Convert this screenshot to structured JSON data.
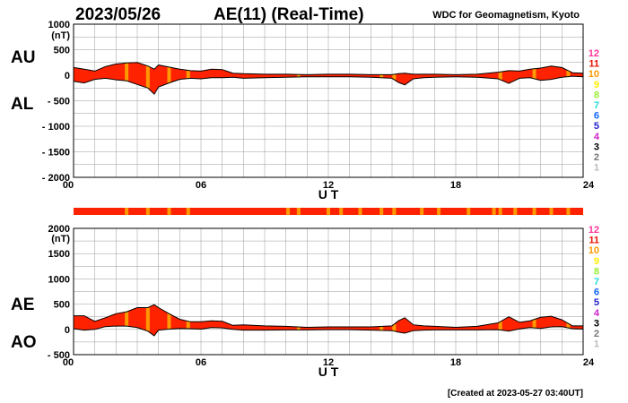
{
  "header": {
    "date": "2023/05/26",
    "title": "AE(11) (Real-Time)",
    "institution": "WDC for Geomagnetism, Kyoto"
  },
  "footer": {
    "created": "[Created at 2023-05-27 03:40UT]"
  },
  "legend": {
    "entries": [
      {
        "label": "12",
        "color": "#ff3399"
      },
      {
        "label": "11",
        "color": "#ee1100"
      },
      {
        "label": "10",
        "color": "#ff9900"
      },
      {
        "label": "9",
        "color": "#ffee00"
      },
      {
        "label": "8",
        "color": "#99ee33"
      },
      {
        "label": "7",
        "color": "#22dddd"
      },
      {
        "label": "6",
        "color": "#1166ff"
      },
      {
        "label": "5",
        "color": "#2222cc"
      },
      {
        "label": "4",
        "color": "#cc22cc"
      },
      {
        "label": "3",
        "color": "#000000"
      },
      {
        "label": "2",
        "color": "#777777"
      },
      {
        "label": "1",
        "color": "#bbbbbb"
      }
    ]
  },
  "colors": {
    "fill_main": "#ff2200",
    "fill_alt": "#ff9900",
    "grid": "#999999"
  },
  "chart_data": [
    {
      "type": "area",
      "panel": "AU/AL",
      "side_label_top": "AU",
      "side_label_bottom": "AL",
      "unit": "(nT)",
      "xlabel": "U T",
      "xlim": [
        0,
        24
      ],
      "ylim": [
        -2000,
        1000
      ],
      "xticks": [
        "00",
        "06",
        "12",
        "18",
        "24"
      ],
      "yticks": [
        "1000",
        "500",
        "0",
        "- 500",
        "- 1000",
        "- 1500",
        "- 2000"
      ],
      "ytick_values": [
        1000,
        500,
        0,
        -500,
        -1000,
        -1500,
        -2000
      ],
      "grid": true,
      "x": [
        0,
        0.5,
        1,
        1.5,
        2,
        2.5,
        3,
        3.5,
        3.8,
        4,
        4.5,
        5,
        5.5,
        6,
        6.5,
        7,
        7.5,
        8,
        9,
        10,
        11,
        12,
        13,
        14,
        15,
        15.3,
        15.6,
        16,
        16.5,
        17,
        18,
        19,
        20,
        20.5,
        21,
        21.5,
        22,
        22.5,
        23,
        23.5,
        24
      ],
      "series": [
        {
          "name": "AU",
          "values": [
            150,
            120,
            80,
            170,
            220,
            240,
            250,
            180,
            120,
            200,
            160,
            120,
            90,
            80,
            120,
            110,
            40,
            30,
            20,
            20,
            10,
            20,
            20,
            10,
            10,
            30,
            40,
            20,
            20,
            20,
            10,
            20,
            60,
            90,
            80,
            120,
            140,
            180,
            150,
            50,
            40
          ]
        },
        {
          "name": "AL",
          "values": [
            -120,
            -150,
            -80,
            -60,
            -90,
            -110,
            -180,
            -250,
            -370,
            -230,
            -150,
            -80,
            -60,
            -70,
            -50,
            -50,
            -40,
            -60,
            -50,
            -40,
            -30,
            -30,
            -30,
            -40,
            -60,
            -140,
            -190,
            -70,
            -50,
            -40,
            -30,
            -40,
            -70,
            -160,
            -60,
            -50,
            -100,
            -80,
            -40,
            -20,
            -30
          ]
        }
      ]
    },
    {
      "type": "area",
      "panel": "AE/AO",
      "side_label_top": "AE",
      "side_label_bottom": "AO",
      "unit": "(nT)",
      "xlabel": "U T",
      "xlim": [
        0,
        24
      ],
      "ylim": [
        -500,
        2000
      ],
      "xticks": [
        "00",
        "06",
        "12",
        "18",
        "24"
      ],
      "yticks": [
        "2000",
        "1500",
        "1000",
        "500",
        "0",
        "- 500"
      ],
      "ytick_values": [
        2000,
        1500,
        1000,
        500,
        0,
        -500
      ],
      "grid": true,
      "x": [
        0,
        0.5,
        1,
        1.5,
        2,
        2.5,
        3,
        3.5,
        3.8,
        4,
        4.5,
        5,
        5.5,
        6,
        6.5,
        7,
        7.5,
        8,
        9,
        10,
        11,
        12,
        13,
        14,
        15,
        15.3,
        15.6,
        16,
        16.5,
        17,
        18,
        19,
        20,
        20.5,
        21,
        21.5,
        22,
        22.5,
        23,
        23.5,
        24
      ],
      "series": [
        {
          "name": "AE",
          "values": [
            270,
            270,
            160,
            230,
            310,
            350,
            430,
            430,
            490,
            430,
            310,
            200,
            150,
            150,
            170,
            160,
            80,
            90,
            70,
            60,
            40,
            50,
            50,
            50,
            70,
            170,
            230,
            90,
            70,
            60,
            40,
            60,
            130,
            250,
            140,
            170,
            240,
            260,
            190,
            70,
            70
          ]
        },
        {
          "name": "AO",
          "values": [
            15,
            -15,
            0,
            55,
            65,
            65,
            35,
            -35,
            -125,
            -15,
            5,
            20,
            15,
            5,
            35,
            30,
            0,
            -15,
            -15,
            -10,
            -10,
            -5,
            -5,
            -15,
            -25,
            -55,
            -75,
            -25,
            -15,
            -10,
            -10,
            -10,
            -5,
            -35,
            10,
            35,
            20,
            50,
            55,
            15,
            5
          ]
        }
      ]
    }
  ]
}
